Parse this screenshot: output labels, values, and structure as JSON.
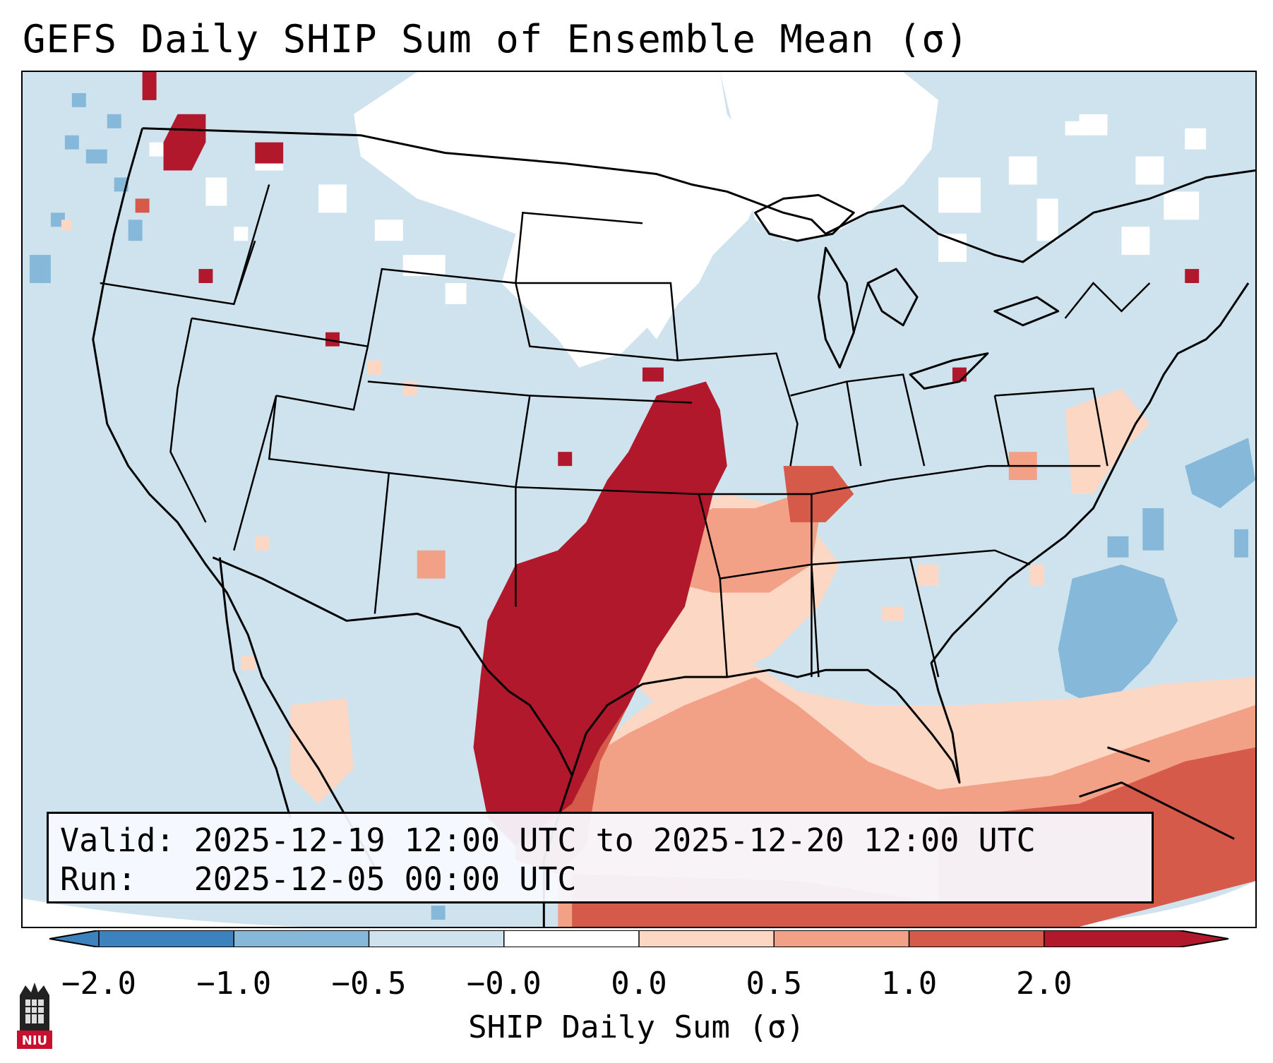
{
  "title": "GEFS Daily SHIP Sum of Ensemble Mean (σ)",
  "info": {
    "valid_label": "Valid:",
    "valid_value": "2025-12-19 12:00 UTC to 2025-12-20 12:00 UTC",
    "run_label": "Run:",
    "run_value": "2025-12-05 00:00 UTC"
  },
  "colorbar": {
    "label": "SHIP Daily Sum (σ)",
    "ticks": [
      "−2.0",
      "−1.0",
      "−0.5",
      "−0.0",
      "0.0",
      "0.5",
      "1.0",
      "2.0"
    ],
    "colors": [
      "#3b82bf",
      "#86b9d9",
      "#cfe3ef",
      "#ffffff",
      "#fbd7c4",
      "#f2a186",
      "#d65a4a",
      "#b2182b"
    ]
  },
  "logo": {
    "text": "NIU"
  },
  "map": {
    "colors": {
      "ocean_background": "#cfe3ef",
      "land_neutral": "#cfe3ef",
      "no_signal": "#ffffff",
      "high_positive": "#b2182b",
      "positive": "#d65a4a",
      "low_positive": "#fbd7c4",
      "moderate_negative": "#86b9d9"
    }
  }
}
